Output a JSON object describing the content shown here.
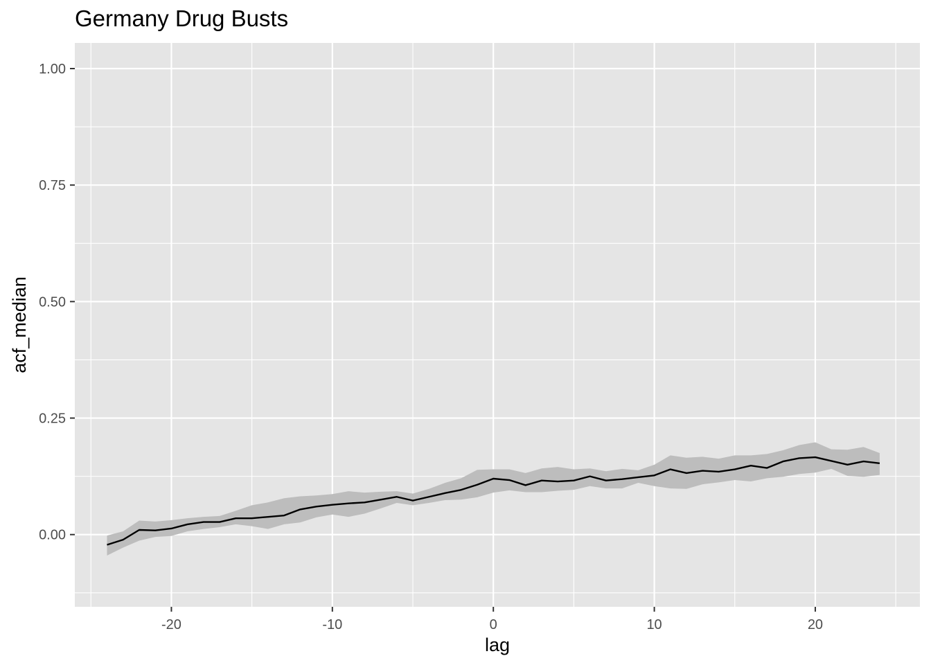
{
  "chart_data": {
    "type": "line",
    "title": "Germany Drug Busts",
    "xlabel": "lag",
    "ylabel": "acf_median",
    "xlim": [
      -26,
      26.5
    ],
    "ylim": [
      -0.155,
      1.055
    ],
    "x_ticks": [
      -20,
      -10,
      0,
      10,
      20
    ],
    "x_tick_labels": [
      "-20",
      "-10",
      "0",
      "10",
      "20"
    ],
    "y_ticks": [
      0.0,
      0.25,
      0.5,
      0.75,
      1.0
    ],
    "y_tick_labels": [
      "0.00",
      "0.25",
      "0.50",
      "0.75",
      "1.00"
    ],
    "grid": true,
    "colors": {
      "panel": "#e5e5e5",
      "grid": "#ffffff",
      "line": "#000000",
      "ribbon": "#bdbdbd"
    },
    "series": [
      {
        "x": [
          -24,
          -23,
          -22,
          -21,
          -20,
          -19,
          -18,
          -17,
          -16,
          -15,
          -14,
          -13,
          -12,
          -11,
          -10,
          -9,
          -8,
          -7,
          -6,
          -5,
          -4,
          -3,
          -2,
          -1,
          0,
          1,
          2,
          3,
          4,
          5,
          6,
          7,
          8,
          9,
          10,
          11,
          12,
          13,
          14,
          15,
          16,
          17,
          18,
          19,
          20,
          21,
          22,
          23,
          24
        ],
        "median": [
          -0.022,
          -0.011,
          0.01,
          0.009,
          0.013,
          0.022,
          0.027,
          0.027,
          0.035,
          0.035,
          0.038,
          0.041,
          0.054,
          0.06,
          0.064,
          0.067,
          0.069,
          0.075,
          0.081,
          0.073,
          0.081,
          0.089,
          0.096,
          0.107,
          0.12,
          0.117,
          0.106,
          0.116,
          0.114,
          0.116,
          0.125,
          0.116,
          0.119,
          0.123,
          0.127,
          0.14,
          0.132,
          0.137,
          0.135,
          0.14,
          0.148,
          0.143,
          0.157,
          0.164,
          0.166,
          0.158,
          0.15,
          0.157,
          0.153
        ],
        "lower": [
          -0.045,
          -0.028,
          -0.013,
          -0.005,
          -0.003,
          0.007,
          0.012,
          0.016,
          0.022,
          0.018,
          0.012,
          0.022,
          0.026,
          0.037,
          0.043,
          0.038,
          0.045,
          0.056,
          0.068,
          0.063,
          0.068,
          0.074,
          0.075,
          0.08,
          0.09,
          0.095,
          0.091,
          0.091,
          0.094,
          0.096,
          0.104,
          0.099,
          0.099,
          0.111,
          0.104,
          0.099,
          0.098,
          0.108,
          0.112,
          0.117,
          0.114,
          0.121,
          0.124,
          0.13,
          0.133,
          0.141,
          0.126,
          0.124,
          0.128
        ],
        "upper": [
          -0.002,
          0.007,
          0.03,
          0.028,
          0.031,
          0.035,
          0.038,
          0.04,
          0.051,
          0.063,
          0.069,
          0.078,
          0.082,
          0.084,
          0.087,
          0.093,
          0.09,
          0.092,
          0.093,
          0.088,
          0.098,
          0.111,
          0.121,
          0.139,
          0.14,
          0.14,
          0.132,
          0.142,
          0.145,
          0.14,
          0.142,
          0.136,
          0.141,
          0.138,
          0.15,
          0.17,
          0.165,
          0.167,
          0.163,
          0.17,
          0.17,
          0.173,
          0.181,
          0.192,
          0.198,
          0.183,
          0.182,
          0.188,
          0.175
        ]
      }
    ]
  }
}
